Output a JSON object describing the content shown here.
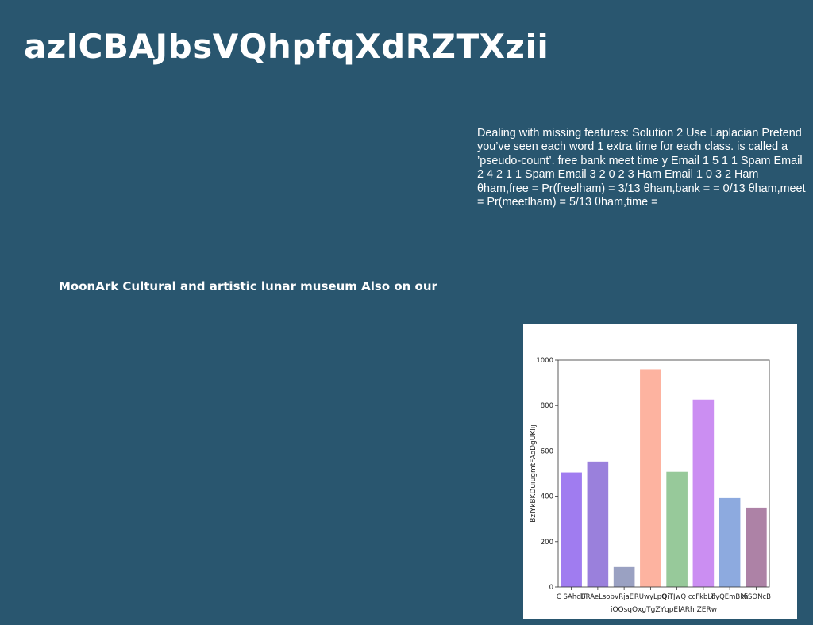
{
  "page": {
    "title": "azlCBAJbsVQhpfqXdRZTXzii",
    "notes": "Dealing with missing features: Solution 2 Use Laplacian Pretend you’ve seen each word 1 extra time for each class. is called a ’pseudo-count’. free bank meet time y Email 1 5 1 1 Spam Email 2 4 2 1 1 Spam Email 3 2 0 2 3 Ham Email 1 0 3 2 Ham θham,free = Pr(freelham) = 3/13 θham,bank = = 0/13 θham,meet = Pr(meetlham) = 5/13 θham,time =",
    "caption": "MoonArk Cultural and artistic lunar museum Also on our"
  },
  "chart_data": {
    "type": "bar",
    "categories": [
      "C SAhclT",
      "BRAeLsob",
      "vRjaE",
      "RUwyLpQ",
      "QiTJwQ c",
      "cFkbLT",
      "dyQEmBkh",
      "XiSONcB"
    ],
    "values": [
      505,
      553,
      88,
      960,
      508,
      826,
      392,
      350
    ],
    "colors": [
      "#a07cf0",
      "#9a80dc",
      "#9aa1c2",
      "#fdb3a0",
      "#97c99a",
      "#cb8ef2",
      "#8daadf",
      "#ad82a6"
    ],
    "xlabel": "iOQsqOxgTgZYqpElARh ZERw",
    "ylabel": "BzlYkBKDuiugmtFAoDgUKlij",
    "ylim": [
      0,
      1000
    ],
    "yticks": [
      0,
      200,
      400,
      600,
      800,
      1000
    ],
    "grid": false,
    "legend": "none"
  }
}
